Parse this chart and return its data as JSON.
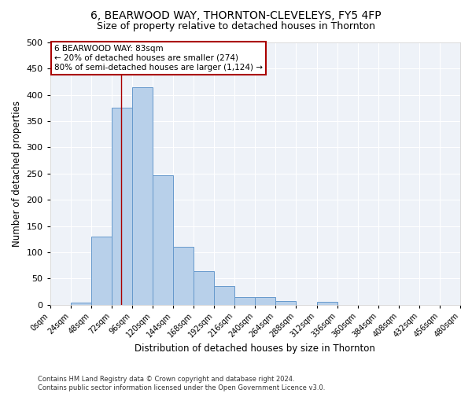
{
  "title1": "6, BEARWOOD WAY, THORNTON-CLEVELEYS, FY5 4FP",
  "title2": "Size of property relative to detached houses in Thornton",
  "xlabel": "Distribution of detached houses by size in Thornton",
  "ylabel": "Number of detached properties",
  "bin_labels": [
    "0sqm",
    "24sqm",
    "48sqm",
    "72sqm",
    "96sqm",
    "120sqm",
    "144sqm",
    "168sqm",
    "192sqm",
    "216sqm",
    "240sqm",
    "264sqm",
    "288sqm",
    "312sqm",
    "336sqm",
    "360sqm",
    "384sqm",
    "408sqm",
    "432sqm",
    "456sqm",
    "480sqm"
  ],
  "bin_left_edges": [
    0,
    24,
    48,
    72,
    96,
    120,
    144,
    168,
    192,
    216,
    240,
    264,
    288,
    312,
    336,
    360,
    384,
    408,
    432,
    456
  ],
  "bar_heights": [
    0,
    4,
    130,
    375,
    415,
    247,
    110,
    64,
    35,
    15,
    15,
    7,
    0,
    6,
    0,
    0,
    0,
    0,
    0,
    0
  ],
  "bar_color": "#b8d0ea",
  "bar_edge_color": "#6699cc",
  "vline_x": 83,
  "vline_color": "#aa0000",
  "annotation_text": "6 BEARWOOD WAY: 83sqm\n← 20% of detached houses are smaller (274)\n80% of semi-detached houses are larger (1,124) →",
  "annotation_box_color": "#ffffff",
  "annotation_box_edge": "#aa0000",
  "ylim": [
    0,
    500
  ],
  "yticks": [
    0,
    50,
    100,
    150,
    200,
    250,
    300,
    350,
    400,
    450,
    500
  ],
  "xlim": [
    0,
    480
  ],
  "background_color": "#eef2f8",
  "footer_text": "Contains HM Land Registry data © Crown copyright and database right 2024.\nContains public sector information licensed under the Open Government Licence v3.0.",
  "title1_fontsize": 10,
  "title2_fontsize": 9,
  "xlabel_fontsize": 8.5,
  "ylabel_fontsize": 8.5,
  "tick_fontsize": 7,
  "footer_fontsize": 6
}
